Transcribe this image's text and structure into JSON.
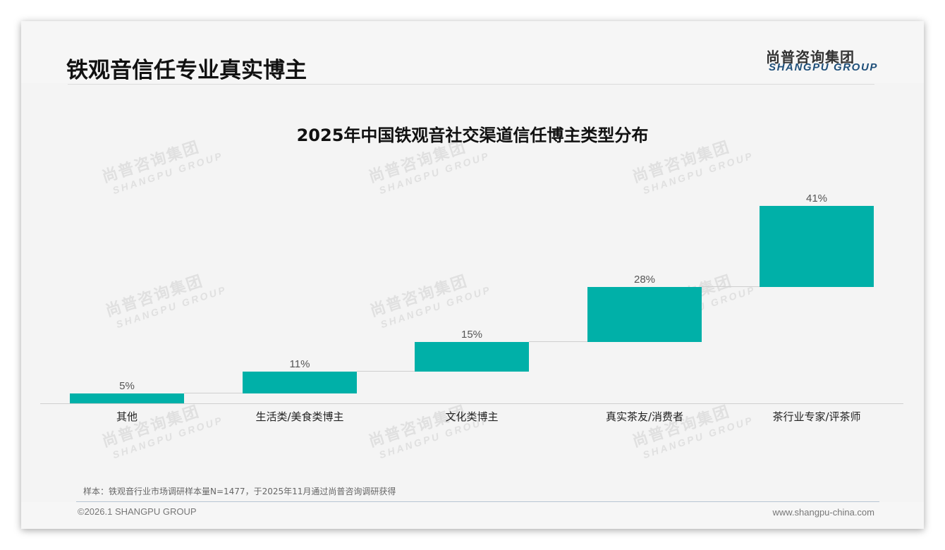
{
  "header": {
    "title": "铁观音信任专业真实博主",
    "logo_cn": "尚普咨询集团",
    "logo_en": "SHANGPU GROUP"
  },
  "watermark": {
    "cn": "尚普咨询集团",
    "en": "SHANGPU GROUP"
  },
  "chart_data": {
    "type": "bar",
    "subtype": "waterfall",
    "title": "2025年中国铁观音社交渠道信任博主类型分布",
    "categories": [
      "其他",
      "生活类/美食类博主",
      "文化类博主",
      "真实茶友/消费者",
      "茶行业专家/评茶师"
    ],
    "values": [
      5,
      11,
      15,
      28,
      41
    ],
    "value_labels": [
      "5%",
      "11%",
      "15%",
      "28%",
      "41%"
    ],
    "unit": "%",
    "xlabel": "",
    "ylabel": "",
    "ylim": [
      0,
      100
    ],
    "grid": false,
    "legend": "none",
    "color": "#00b0a8"
  },
  "footer": {
    "note": "样本：铁观音行业市场调研样本量N=1477，于2025年11月通过尚普咨询调研获得",
    "copyright": "©2026.1 SHANGPU GROUP",
    "website": "www.shangpu-china.com"
  }
}
